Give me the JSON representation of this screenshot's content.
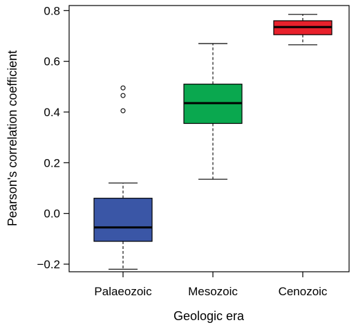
{
  "chart_data": {
    "type": "box",
    "xlabel": "Geologic era",
    "ylabel": "Pearson's correlation coefficient",
    "ylim": [
      -0.23,
      0.82
    ],
    "yticks": [
      -0.2,
      0.0,
      0.2,
      0.4,
      0.6,
      0.8
    ],
    "ytick_labels": [
      "−0.2",
      "0.0",
      "0.2",
      "0.4",
      "0.6",
      "0.8"
    ],
    "categories": [
      "Palaeozoic",
      "Mesozoic",
      "Cenozoic"
    ],
    "boxes": [
      {
        "name": "Palaeozoic",
        "whisker_low": -0.22,
        "q1": -0.11,
        "median": -0.055,
        "q3": 0.06,
        "whisker_high": 0.12,
        "outliers": [
          0.405,
          0.465,
          0.495
        ],
        "color": "#3a56a6"
      },
      {
        "name": "Mesozoic",
        "whisker_low": 0.135,
        "q1": 0.355,
        "median": 0.435,
        "q3": 0.51,
        "whisker_high": 0.67,
        "outliers": [],
        "color": "#0aa84f"
      },
      {
        "name": "Cenozoic",
        "whisker_low": 0.665,
        "q1": 0.705,
        "median": 0.735,
        "q3": 0.76,
        "whisker_high": 0.785,
        "outliers": [],
        "color": "#e8212c"
      }
    ],
    "grid": false,
    "legend": "none"
  }
}
